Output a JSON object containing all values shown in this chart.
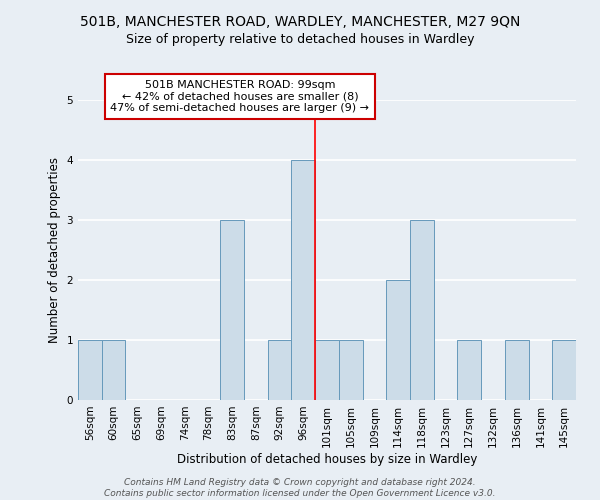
{
  "title": "501B, MANCHESTER ROAD, WARDLEY, MANCHESTER, M27 9QN",
  "subtitle": "Size of property relative to detached houses in Wardley",
  "xlabel": "Distribution of detached houses by size in Wardley",
  "ylabel": "Number of detached properties",
  "bin_labels": [
    "56sqm",
    "60sqm",
    "65sqm",
    "69sqm",
    "74sqm",
    "78sqm",
    "83sqm",
    "87sqm",
    "92sqm",
    "96sqm",
    "101sqm",
    "105sqm",
    "109sqm",
    "114sqm",
    "118sqm",
    "123sqm",
    "127sqm",
    "132sqm",
    "136sqm",
    "141sqm",
    "145sqm"
  ],
  "bar_heights": [
    1,
    1,
    0,
    0,
    0,
    0,
    3,
    0,
    1,
    4,
    1,
    1,
    0,
    2,
    3,
    0,
    1,
    0,
    1,
    0,
    1
  ],
  "bar_color": "#ccdce8",
  "bar_edge_color": "#6699bb",
  "red_line_x": 9.5,
  "ylim": [
    0,
    5
  ],
  "yticks": [
    0,
    1,
    2,
    3,
    4,
    5
  ],
  "annotation_title": "501B MANCHESTER ROAD: 99sqm",
  "annotation_line1": "← 42% of detached houses are smaller (8)",
  "annotation_line2": "47% of semi-detached houses are larger (9) →",
  "annotation_box_color": "#ffffff",
  "annotation_border_color": "#cc0000",
  "footer_line1": "Contains HM Land Registry data © Crown copyright and database right 2024.",
  "footer_line2": "Contains public sector information licensed under the Open Government Licence v3.0.",
  "background_color": "#e8eef4",
  "plot_bg_color": "#e8eef4",
  "grid_color": "#ffffff",
  "title_fontsize": 10,
  "subtitle_fontsize": 9,
  "axis_label_fontsize": 8.5,
  "tick_fontsize": 7.5,
  "annotation_fontsize": 8,
  "footer_fontsize": 6.5
}
